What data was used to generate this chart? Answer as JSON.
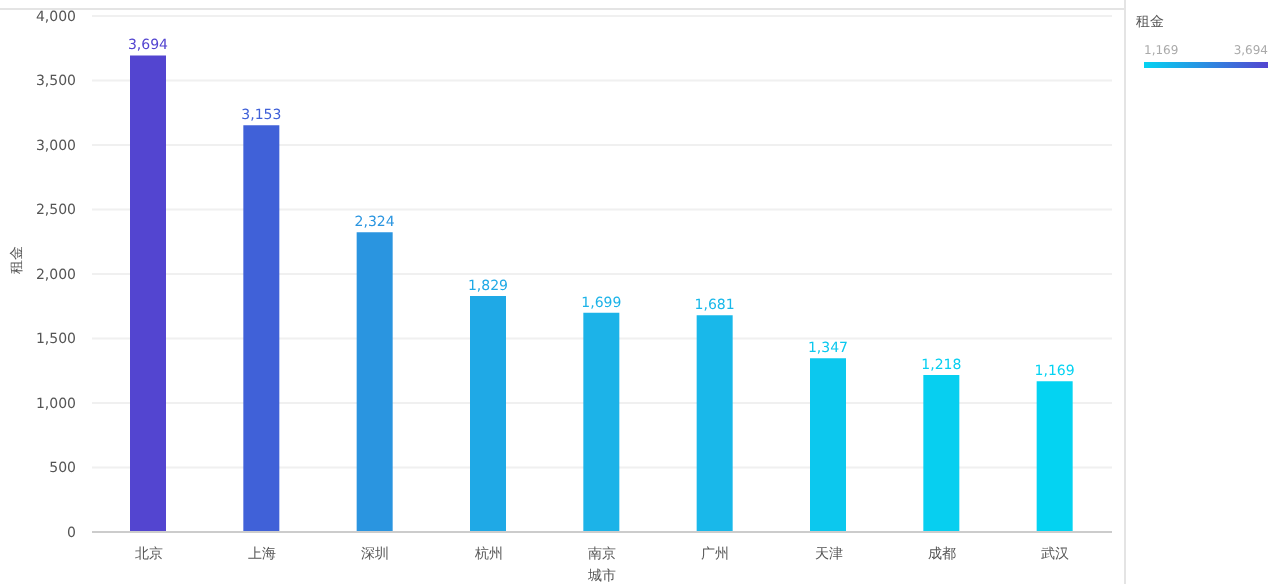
{
  "chart_data": {
    "type": "bar",
    "xlabel": "城市",
    "ylabel": "租金",
    "clabel": "租金",
    "categories": [
      "北京",
      "上海",
      "深圳",
      "杭州",
      "南京",
      "广州",
      "天津",
      "成都",
      "武汉"
    ],
    "values": [
      3694,
      3153,
      2324,
      1829,
      1699,
      1681,
      1347,
      1218,
      1169
    ],
    "value_labels": [
      "3,694",
      "3,153",
      "2,324",
      "1,829",
      "1,699",
      "1,681",
      "1,347",
      "1,218",
      "1,169"
    ],
    "colors": [
      "#5345d0",
      "#4061d8",
      "#2a95e0",
      "#1fa9e6",
      "#1cb3e8",
      "#19b8ea",
      "#0cc8ee",
      "#07cff0",
      "#04d3f2"
    ],
    "ylim": [
      0,
      4000
    ],
    "yticks": [
      {
        "value": 0,
        "label": "0"
      },
      {
        "value": 500,
        "label": "500"
      },
      {
        "value": 1000,
        "label": "1,000"
      },
      {
        "value": 1500,
        "label": "1,500"
      },
      {
        "value": 2000,
        "label": "2,000"
      },
      {
        "value": 2500,
        "label": "2,500"
      },
      {
        "value": 3000,
        "label": "3,000"
      },
      {
        "value": 3500,
        "label": "3,500"
      },
      {
        "value": 4000,
        "label": "4,000"
      }
    ],
    "annotations": [
      "1,169",
      "3,694"
    ],
    "grid": "y"
  }
}
